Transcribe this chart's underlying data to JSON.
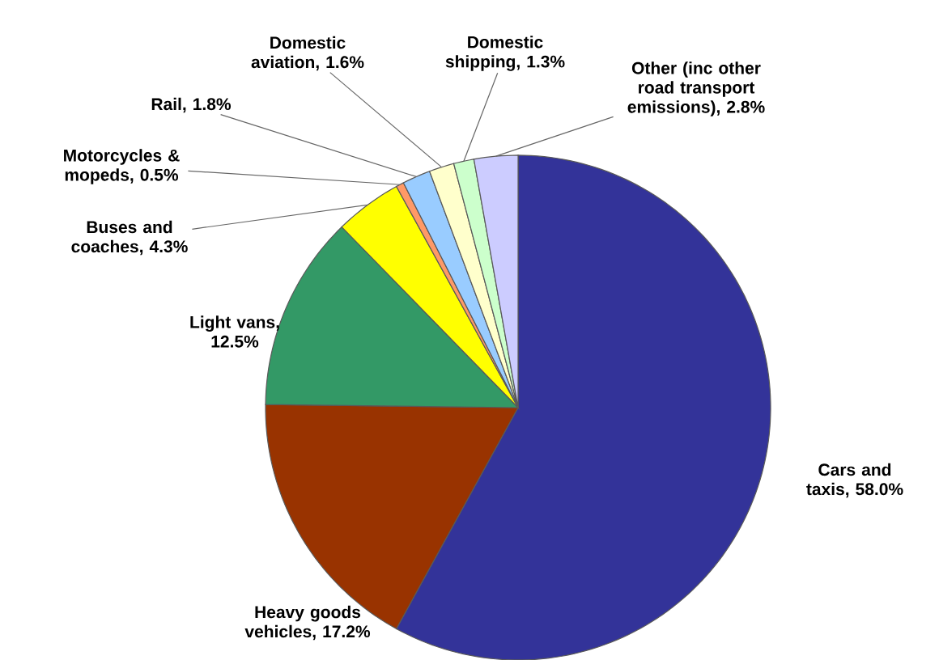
{
  "chart_data": {
    "type": "pie",
    "categories": [
      "Cars and taxis",
      "Heavy goods vehicles",
      "Light vans",
      "Buses and coaches",
      "Motorcycles & mopeds",
      "Rail",
      "Domestic aviation",
      "Domestic shipping",
      "Other (inc other road transport emissions)"
    ],
    "values": [
      58.0,
      17.2,
      12.5,
      4.3,
      0.5,
      1.8,
      1.6,
      1.3,
      2.8
    ],
    "value_labels": [
      ", 58.0%",
      ", 17.2%",
      ", 12.5%",
      ", 4.3%",
      ", 0.5%",
      ", 1.8%",
      ", 1.6%",
      ", 1.3%",
      ", 2.8%"
    ],
    "colors": [
      "#333399",
      "#993300",
      "#339966",
      "#ffff00",
      "#ff9966",
      "#99ccff",
      "#ffffcc",
      "#ccffcc",
      "#ccccff"
    ]
  }
}
